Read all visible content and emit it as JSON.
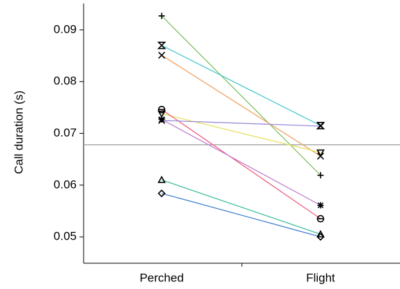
{
  "chart_data": {
    "type": "paired-line",
    "y_label": "Call duration (s)",
    "categories": [
      "Perched",
      "Flight"
    ],
    "ylim": [
      0.0449,
      0.0951
    ],
    "yticks": [
      0.05,
      0.06,
      0.07,
      0.08,
      0.09
    ],
    "hline": 0.0678,
    "hline_color": "#999999",
    "series": [
      {
        "color": "#80c060",
        "marker": "plus",
        "values": [
          0.0927,
          0.0619
        ]
      },
      {
        "color": "#40c8d0",
        "marker": "hourglass",
        "values": [
          0.087,
          0.0715
        ]
      },
      {
        "color": "#f0a060",
        "marker": "cross",
        "values": [
          0.0851,
          0.0656
        ]
      },
      {
        "color": "#e8e060",
        "marker": "triangle-down",
        "values": [
          0.0738,
          0.0663
        ]
      },
      {
        "color": "#f06080",
        "marker": "circle",
        "values": [
          0.0746,
          0.0535
        ]
      },
      {
        "color": "#c080d0",
        "marker": "star",
        "values": [
          0.0727,
          0.0561
        ]
      },
      {
        "color": "#9a8ad8",
        "marker": "cross",
        "values": [
          0.0725,
          0.0714
        ]
      },
      {
        "color": "#40c0a0",
        "marker": "triangle",
        "values": [
          0.061,
          0.0505
        ]
      },
      {
        "color": "#4080d0",
        "marker": "diamond",
        "values": [
          0.0584,
          0.05
        ]
      }
    ]
  }
}
